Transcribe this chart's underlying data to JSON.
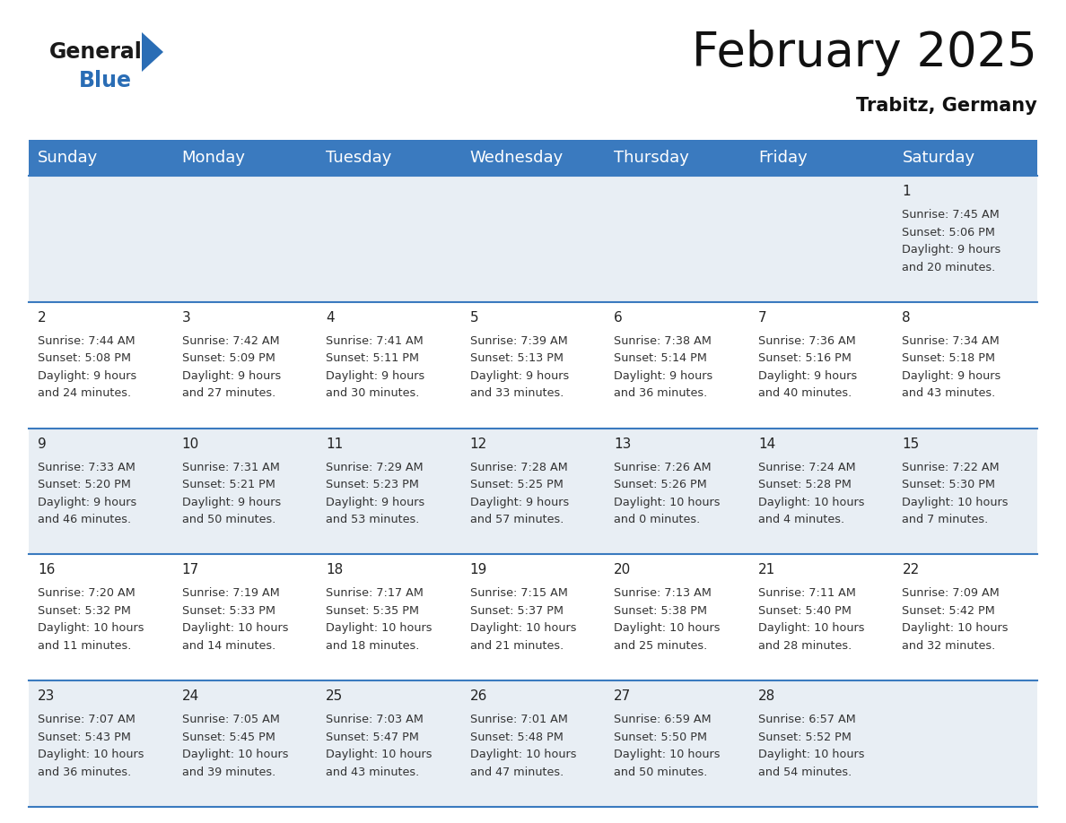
{
  "title": "February 2025",
  "subtitle": "Trabitz, Germany",
  "header_color": "#3a7abf",
  "header_text_color": "#ffffff",
  "weekdays": [
    "Sunday",
    "Monday",
    "Tuesday",
    "Wednesday",
    "Thursday",
    "Friday",
    "Saturday"
  ],
  "title_fontsize": 38,
  "subtitle_fontsize": 15,
  "header_fontsize": 13,
  "cell_fontsize": 9.2,
  "day_num_fontsize": 11,
  "bg_color": "#ffffff",
  "cell_bg_row0": "#e8eef4",
  "cell_bg_row1": "#ffffff",
  "separator_color": "#3a7abf",
  "logo_general_color": "#1a1a1a",
  "logo_blue_color": "#2a6db5",
  "logo_triangle_color": "#2a6db5",
  "days": [
    {
      "day": 1,
      "col": 6,
      "row": 0,
      "sunrise": "7:45 AM",
      "sunset": "5:06 PM",
      "daylight": "9 hours and 20 minutes."
    },
    {
      "day": 2,
      "col": 0,
      "row": 1,
      "sunrise": "7:44 AM",
      "sunset": "5:08 PM",
      "daylight": "9 hours and 24 minutes."
    },
    {
      "day": 3,
      "col": 1,
      "row": 1,
      "sunrise": "7:42 AM",
      "sunset": "5:09 PM",
      "daylight": "9 hours and 27 minutes."
    },
    {
      "day": 4,
      "col": 2,
      "row": 1,
      "sunrise": "7:41 AM",
      "sunset": "5:11 PM",
      "daylight": "9 hours and 30 minutes."
    },
    {
      "day": 5,
      "col": 3,
      "row": 1,
      "sunrise": "7:39 AM",
      "sunset": "5:13 PM",
      "daylight": "9 hours and 33 minutes."
    },
    {
      "day": 6,
      "col": 4,
      "row": 1,
      "sunrise": "7:38 AM",
      "sunset": "5:14 PM",
      "daylight": "9 hours and 36 minutes."
    },
    {
      "day": 7,
      "col": 5,
      "row": 1,
      "sunrise": "7:36 AM",
      "sunset": "5:16 PM",
      "daylight": "9 hours and 40 minutes."
    },
    {
      "day": 8,
      "col": 6,
      "row": 1,
      "sunrise": "7:34 AM",
      "sunset": "5:18 PM",
      "daylight": "9 hours and 43 minutes."
    },
    {
      "day": 9,
      "col": 0,
      "row": 2,
      "sunrise": "7:33 AM",
      "sunset": "5:20 PM",
      "daylight": "9 hours and 46 minutes."
    },
    {
      "day": 10,
      "col": 1,
      "row": 2,
      "sunrise": "7:31 AM",
      "sunset": "5:21 PM",
      "daylight": "9 hours and 50 minutes."
    },
    {
      "day": 11,
      "col": 2,
      "row": 2,
      "sunrise": "7:29 AM",
      "sunset": "5:23 PM",
      "daylight": "9 hours and 53 minutes."
    },
    {
      "day": 12,
      "col": 3,
      "row": 2,
      "sunrise": "7:28 AM",
      "sunset": "5:25 PM",
      "daylight": "9 hours and 57 minutes."
    },
    {
      "day": 13,
      "col": 4,
      "row": 2,
      "sunrise": "7:26 AM",
      "sunset": "5:26 PM",
      "daylight": "10 hours and 0 minutes."
    },
    {
      "day": 14,
      "col": 5,
      "row": 2,
      "sunrise": "7:24 AM",
      "sunset": "5:28 PM",
      "daylight": "10 hours and 4 minutes."
    },
    {
      "day": 15,
      "col": 6,
      "row": 2,
      "sunrise": "7:22 AM",
      "sunset": "5:30 PM",
      "daylight": "10 hours and 7 minutes."
    },
    {
      "day": 16,
      "col": 0,
      "row": 3,
      "sunrise": "7:20 AM",
      "sunset": "5:32 PM",
      "daylight": "10 hours and 11 minutes."
    },
    {
      "day": 17,
      "col": 1,
      "row": 3,
      "sunrise": "7:19 AM",
      "sunset": "5:33 PM",
      "daylight": "10 hours and 14 minutes."
    },
    {
      "day": 18,
      "col": 2,
      "row": 3,
      "sunrise": "7:17 AM",
      "sunset": "5:35 PM",
      "daylight": "10 hours and 18 minutes."
    },
    {
      "day": 19,
      "col": 3,
      "row": 3,
      "sunrise": "7:15 AM",
      "sunset": "5:37 PM",
      "daylight": "10 hours and 21 minutes."
    },
    {
      "day": 20,
      "col": 4,
      "row": 3,
      "sunrise": "7:13 AM",
      "sunset": "5:38 PM",
      "daylight": "10 hours and 25 minutes."
    },
    {
      "day": 21,
      "col": 5,
      "row": 3,
      "sunrise": "7:11 AM",
      "sunset": "5:40 PM",
      "daylight": "10 hours and 28 minutes."
    },
    {
      "day": 22,
      "col": 6,
      "row": 3,
      "sunrise": "7:09 AM",
      "sunset": "5:42 PM",
      "daylight": "10 hours and 32 minutes."
    },
    {
      "day": 23,
      "col": 0,
      "row": 4,
      "sunrise": "7:07 AM",
      "sunset": "5:43 PM",
      "daylight": "10 hours and 36 minutes."
    },
    {
      "day": 24,
      "col": 1,
      "row": 4,
      "sunrise": "7:05 AM",
      "sunset": "5:45 PM",
      "daylight": "10 hours and 39 minutes."
    },
    {
      "day": 25,
      "col": 2,
      "row": 4,
      "sunrise": "7:03 AM",
      "sunset": "5:47 PM",
      "daylight": "10 hours and 43 minutes."
    },
    {
      "day": 26,
      "col": 3,
      "row": 4,
      "sunrise": "7:01 AM",
      "sunset": "5:48 PM",
      "daylight": "10 hours and 47 minutes."
    },
    {
      "day": 27,
      "col": 4,
      "row": 4,
      "sunrise": "6:59 AM",
      "sunset": "5:50 PM",
      "daylight": "10 hours and 50 minutes."
    },
    {
      "day": 28,
      "col": 5,
      "row": 4,
      "sunrise": "6:57 AM",
      "sunset": "5:52 PM",
      "daylight": "10 hours and 54 minutes."
    }
  ]
}
